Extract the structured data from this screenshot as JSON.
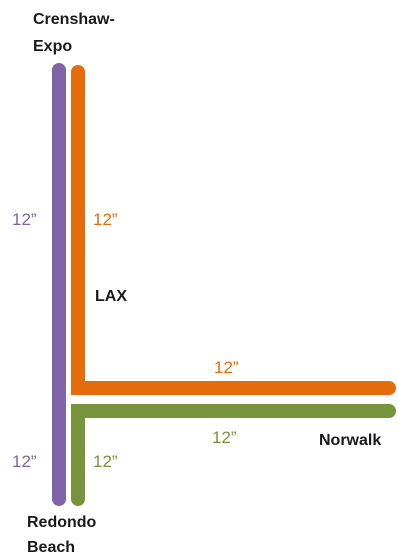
{
  "stations": {
    "crenshaw_expo": [
      "Crenshaw-",
      "Expo"
    ],
    "lax": "LAX",
    "norwalk": "Norwalk",
    "redondo_beach": [
      "Redondo",
      "Beach"
    ]
  },
  "frequencies": {
    "purple_upper": "12”",
    "orange_vertical": "12”",
    "orange_horizontal": "12”",
    "green_horizontal": "12”",
    "purple_lower": "12”",
    "green_vertical": "12”"
  },
  "colors": {
    "purple": "#7f65a8",
    "orange": "#e46c0a",
    "green": "#77933c",
    "purple_text": "#8064a2",
    "orange_text": "#e46c0a",
    "green_text": "#77933c"
  }
}
